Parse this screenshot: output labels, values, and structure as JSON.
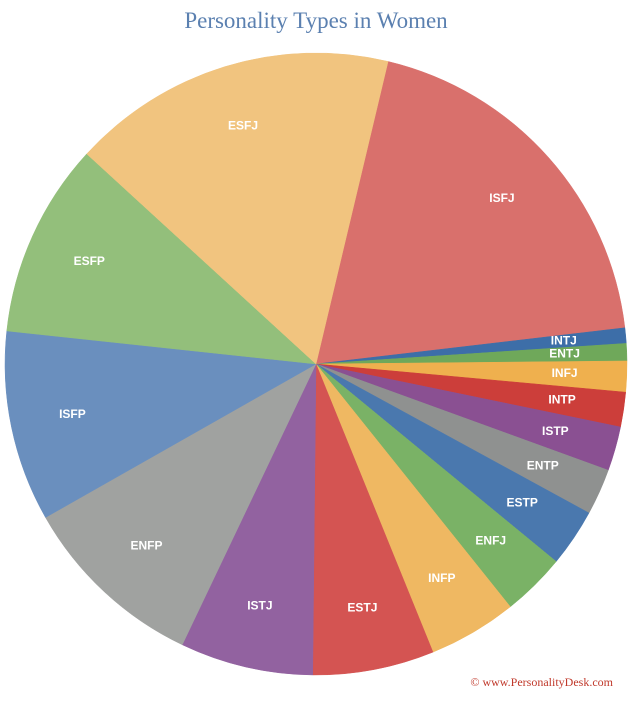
{
  "chart_data": {
    "type": "pie",
    "title": "Personality Types in Women",
    "categories": [
      "ISFJ",
      "INTJ",
      "ENTJ",
      "INFJ",
      "INTP",
      "ISTP",
      "ENTP",
      "ESTP",
      "ENFJ",
      "INFP",
      "ESTJ",
      "ISTJ",
      "ENFP",
      "ISFP",
      "ESFP",
      "ESFJ"
    ],
    "values": [
      19.4,
      0.8,
      0.9,
      1.6,
      1.8,
      2.3,
      2.4,
      3.0,
      3.3,
      4.6,
      6.3,
      6.9,
      9.7,
      9.9,
      10.1,
      16.9
    ],
    "colors": [
      "#d9706c",
      "#3d6ea8",
      "#6fa85a",
      "#efb04e",
      "#cc3e3a",
      "#8a5092",
      "#8f9190",
      "#4a78ae",
      "#7ab266",
      "#efb862",
      "#d45452",
      "#9262a0",
      "#a0a2a0",
      "#6a8fbe",
      "#93bf7b",
      "#f1c47f"
    ],
    "source": "© www.PersonalityDesk.com"
  }
}
